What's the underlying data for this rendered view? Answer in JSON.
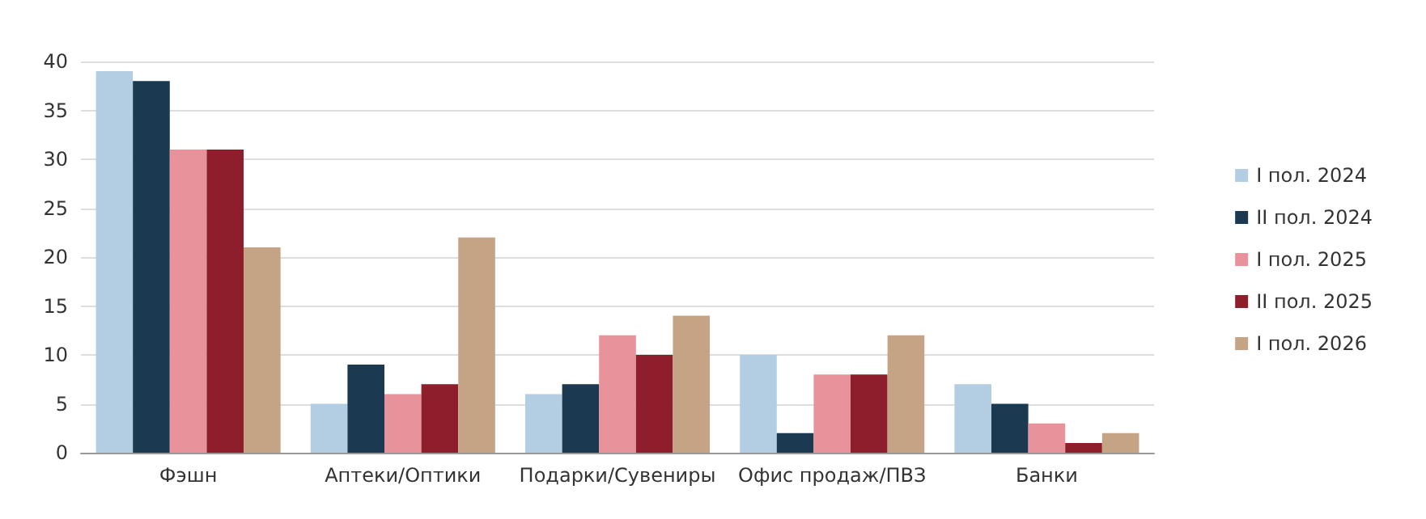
{
  "chart_data": {
    "type": "bar",
    "categories": [
      "Фэшн",
      "Аптеки/Оптики",
      "Подарки/Сувениры",
      "Офис продаж/ПВЗ",
      "Банки"
    ],
    "series": [
      {
        "name": "I пол. 2024",
        "color": "#b3cde3",
        "values": [
          39,
          5,
          6,
          10,
          7
        ]
      },
      {
        "name": "II пол. 2024",
        "color": "#1b3a52",
        "values": [
          38,
          9,
          7,
          2,
          5
        ]
      },
      {
        "name": "I пол. 2025",
        "color": "#e8939b",
        "values": [
          31,
          6,
          12,
          8,
          3
        ]
      },
      {
        "name": "II пол. 2025",
        "color": "#8e1e2b",
        "values": [
          31,
          7,
          10,
          8,
          1
        ]
      },
      {
        "name": "I пол. 2026",
        "color": "#c4a484",
        "values": [
          21,
          22,
          14,
          12,
          2
        ]
      }
    ],
    "ylim": [
      0,
      40
    ],
    "yticks": [
      0,
      5,
      10,
      15,
      20,
      25,
      30,
      35,
      40
    ],
    "grid": "y",
    "legend": "right"
  }
}
